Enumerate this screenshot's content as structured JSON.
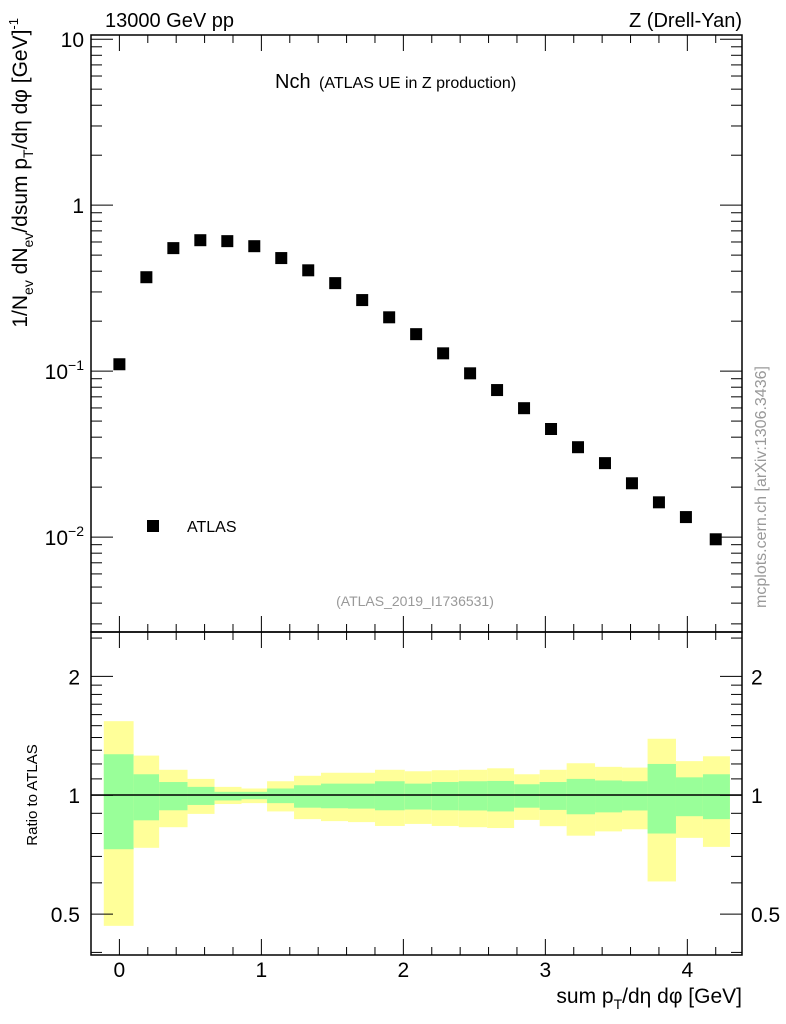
{
  "header": {
    "left": "13000 GeV pp",
    "right": "Z (Drell-Yan)"
  },
  "colors": {
    "marker": "#000000",
    "band_inner": "#99ff99",
    "band_outer": "#ffff99",
    "watermark": "#999999"
  },
  "chart_data": [
    {
      "type": "scatter",
      "title_main": "Nch",
      "title_sub": "(ATLAS UE in Z production)",
      "analysis_id": "(ATLAS_2019_I1736531)",
      "watermark": "mcplots.cern.ch [arXiv:1306.3436]",
      "ylabel_parts": {
        "a": "1/N",
        "b": "ev",
        "c": " dN",
        "d": "ev",
        "e": "/dsum p",
        "f": "T",
        "g": "/dη dφ  [GeV]",
        "h": "-1"
      },
      "yscale": "log",
      "ylim": [
        0.00268,
        10.6
      ],
      "xlim": [
        -0.2,
        4.385
      ],
      "yticks": [
        {
          "v": 10,
          "label": "10",
          "exp": ""
        },
        {
          "v": 1,
          "label": "1",
          "exp": ""
        },
        {
          "v": 0.1,
          "label": "10",
          "exp": "−1"
        },
        {
          "v": 0.01,
          "label": "10",
          "exp": "−2"
        }
      ],
      "legend": {
        "label": "ATLAS",
        "position": "lower-left"
      },
      "series": [
        {
          "name": "ATLAS",
          "x": [
            0,
            0.19,
            0.38,
            0.57,
            0.76,
            0.95,
            1.14,
            1.33,
            1.52,
            1.71,
            1.9,
            2.09,
            2.28,
            2.47,
            2.66,
            2.85,
            3.04,
            3.23,
            3.42,
            3.61,
            3.8,
            3.99,
            4.2
          ],
          "y": [
            0.11,
            0.368,
            0.551,
            0.615,
            0.607,
            0.566,
            0.48,
            0.405,
            0.339,
            0.268,
            0.211,
            0.167,
            0.128,
            0.097,
            0.0769,
            0.0598,
            0.0448,
            0.0348,
            0.0279,
            0.0211,
            0.0162,
            0.0132,
            0.0097
          ]
        }
      ]
    },
    {
      "type": "area",
      "ylabel": "Ratio to ATLAS",
      "xlabel_parts": {
        "a": "sum p",
        "b": "T",
        "c": "/dη dφ [GeV]"
      },
      "yscale": "log",
      "ylim": [
        0.394,
        2.59
      ],
      "xlim": [
        -0.2,
        4.385
      ],
      "xticks": [
        0,
        1,
        2,
        3,
        4
      ],
      "xtick_labels": [
        "0",
        "1",
        "2",
        "3",
        "4"
      ],
      "yticks": [
        0.5,
        1,
        2
      ],
      "ytick_labels": [
        "0.5",
        "1",
        "2"
      ],
      "reference_line": 1,
      "bin_edges": [
        -0.11,
        0.1,
        0.28,
        0.48,
        0.67,
        0.86,
        1.04,
        1.23,
        1.42,
        1.61,
        1.8,
        2.01,
        2.2,
        2.39,
        2.59,
        2.78,
        2.96,
        3.15,
        3.35,
        3.54,
        3.72,
        3.92,
        4.11,
        4.3
      ],
      "inner_band": {
        "low": [
          0.73,
          0.864,
          0.916,
          0.945,
          0.97,
          0.977,
          0.955,
          0.93,
          0.927,
          0.925,
          0.916,
          0.92,
          0.916,
          0.915,
          0.91,
          0.93,
          0.918,
          0.895,
          0.905,
          0.915,
          0.8,
          0.885,
          0.87
        ],
        "high": [
          1.27,
          1.13,
          1.08,
          1.05,
          1.02,
          1.02,
          1.04,
          1.06,
          1.07,
          1.07,
          1.085,
          1.07,
          1.08,
          1.085,
          1.087,
          1.066,
          1.08,
          1.1,
          1.09,
          1.085,
          1.2,
          1.11,
          1.13
        ]
      },
      "outer_band": {
        "low": [
          0.467,
          0.736,
          0.83,
          0.897,
          0.95,
          0.955,
          0.91,
          0.87,
          0.86,
          0.855,
          0.836,
          0.846,
          0.836,
          0.83,
          0.826,
          0.866,
          0.835,
          0.79,
          0.81,
          0.82,
          0.605,
          0.78,
          0.74
        ],
        "high": [
          1.54,
          1.26,
          1.16,
          1.1,
          1.05,
          1.04,
          1.085,
          1.12,
          1.14,
          1.14,
          1.16,
          1.15,
          1.157,
          1.16,
          1.17,
          1.13,
          1.16,
          1.205,
          1.18,
          1.175,
          1.39,
          1.22,
          1.255
        ]
      }
    }
  ]
}
